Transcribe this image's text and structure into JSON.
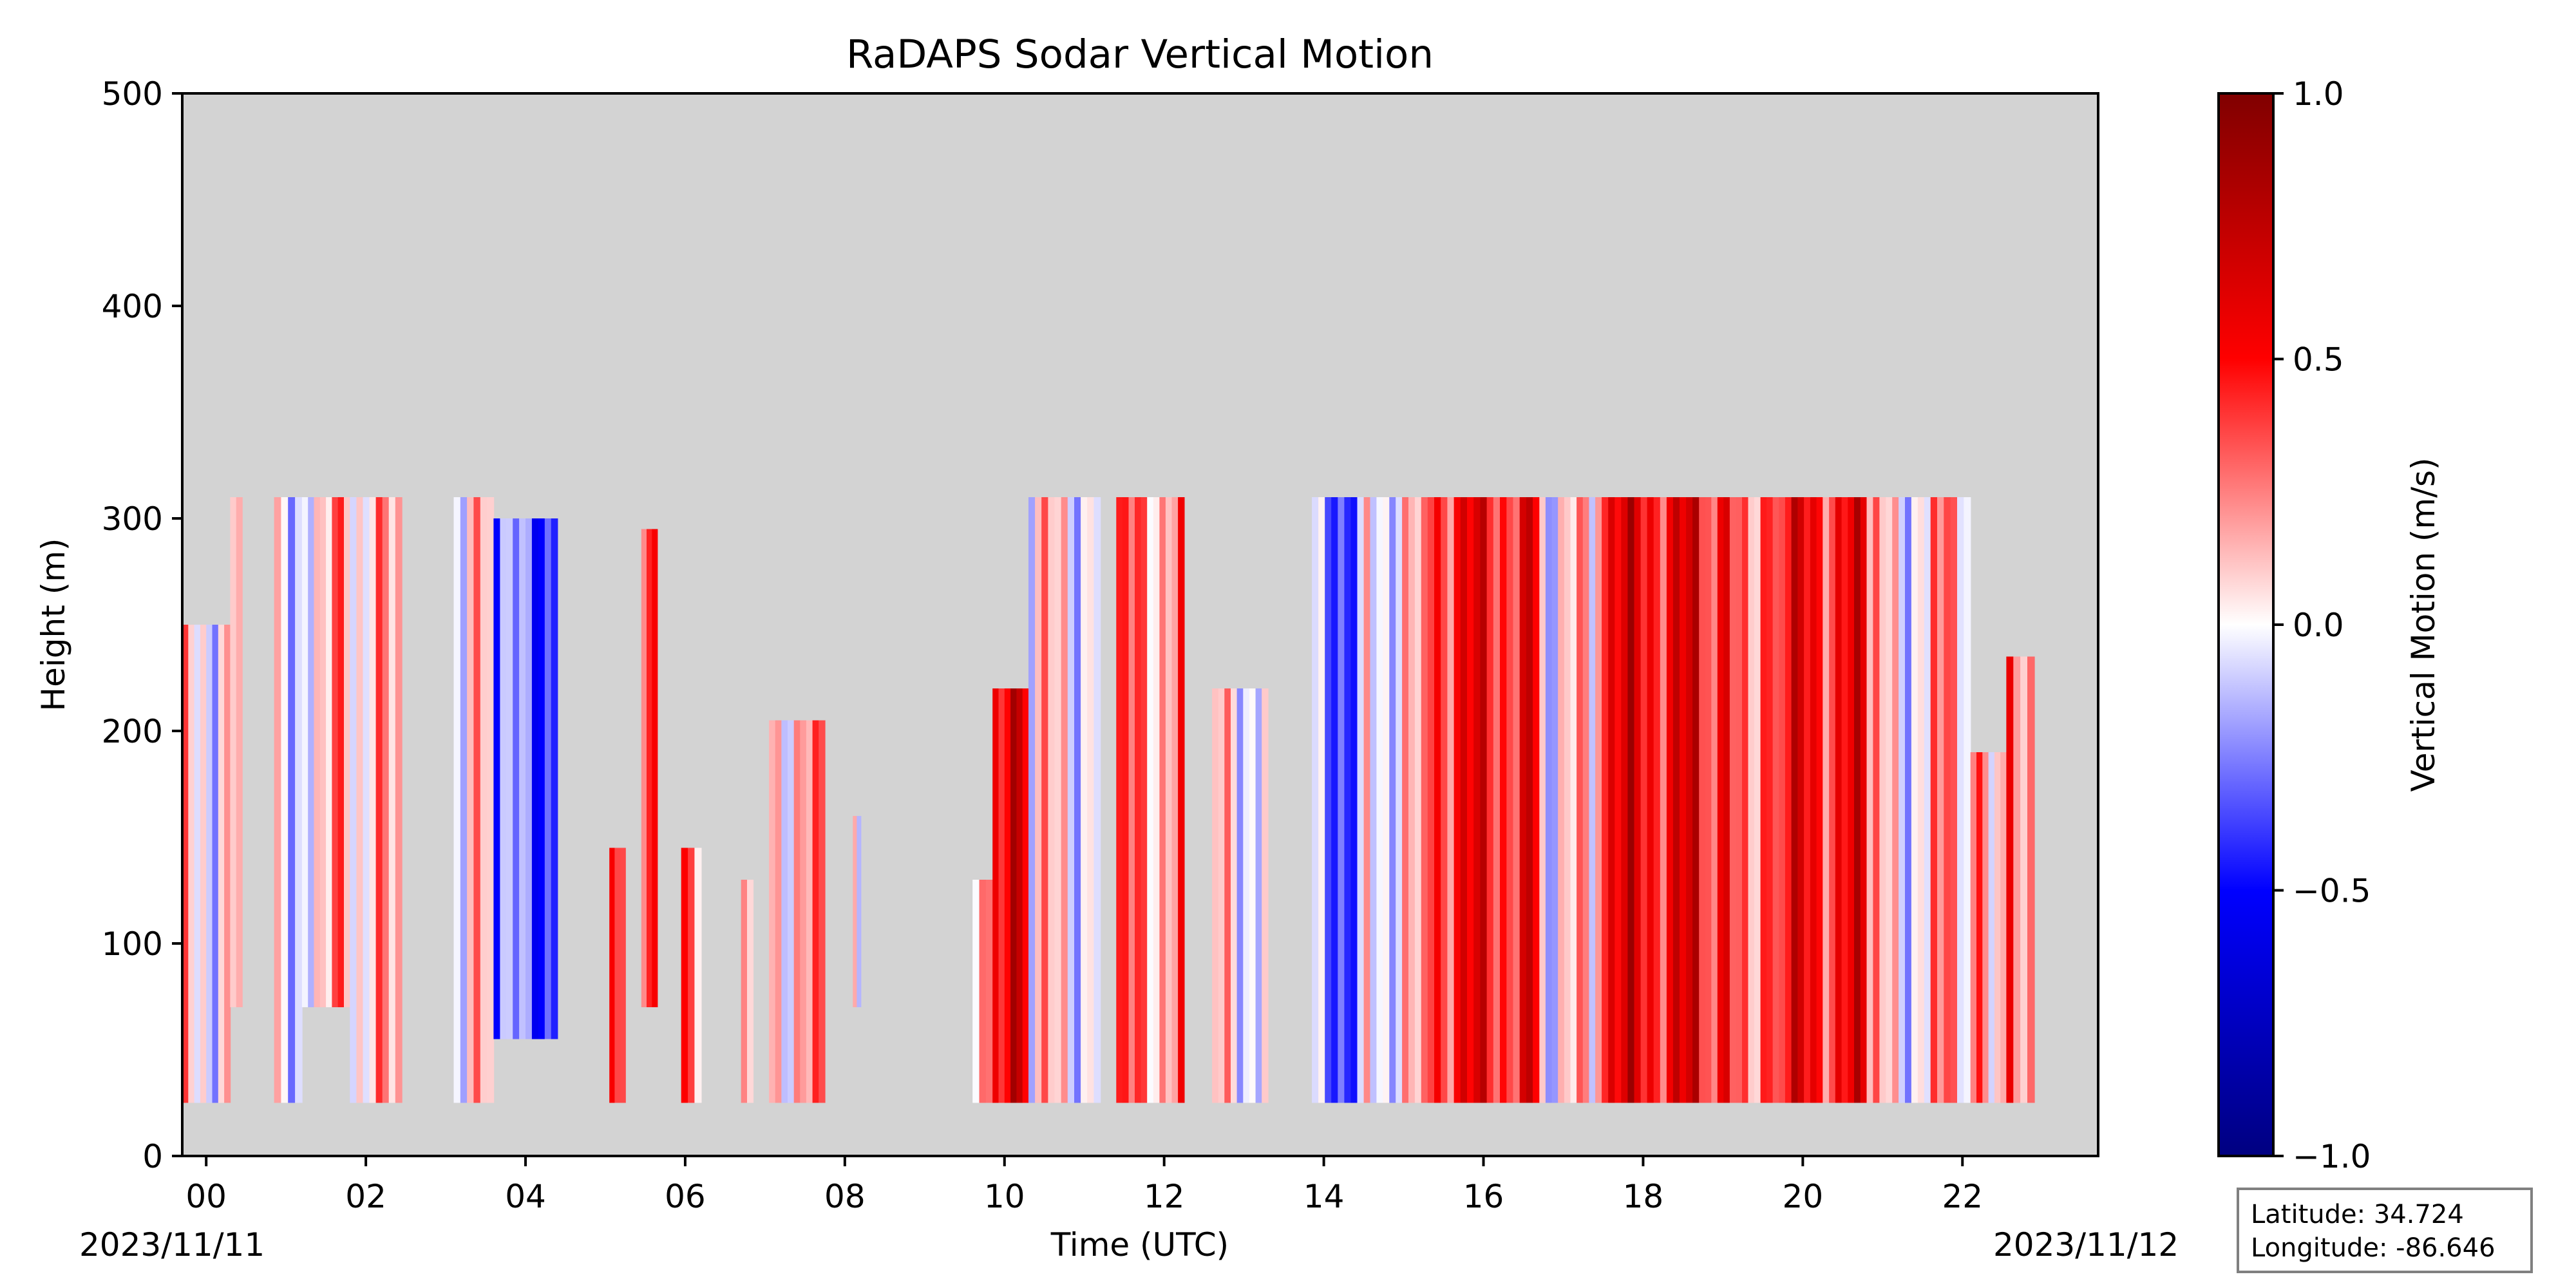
{
  "chart_data": {
    "type": "heatmap",
    "title": "RaDAPS Sodar Vertical Motion",
    "xlabel": "Time (UTC)",
    "ylabel": "Height (m)",
    "colorbar_label": "Vertical Motion (m/s)",
    "colormap": "seismic",
    "missing_color": "#d3d3d3",
    "xlim_hours": [
      -0.3,
      23.7
    ],
    "ylim": [
      0,
      500
    ],
    "x_ticks": [
      0,
      2,
      4,
      6,
      8,
      10,
      12,
      14,
      16,
      18,
      20,
      22
    ],
    "x_tick_labels": [
      "00",
      "02",
      "04",
      "06",
      "08",
      "10",
      "12",
      "14",
      "16",
      "18",
      "20",
      "22"
    ],
    "y_ticks": [
      0,
      100,
      200,
      300,
      400,
      500
    ],
    "y_tick_labels": [
      "0",
      "100",
      "200",
      "300",
      "400",
      "500"
    ],
    "colorbar_range": [
      -1.0,
      1.0
    ],
    "colorbar_ticks": [
      1.0,
      0.5,
      0.0,
      -0.5,
      -1.0
    ],
    "colorbar_tick_labels": [
      "1.0",
      "0.5",
      "0.0",
      "−0.5",
      "−1.0"
    ],
    "date_left": "2023/11/11",
    "date_right": "2023/11/12",
    "segments": [
      {
        "start": -0.3,
        "end": 0.3,
        "bottom": 25,
        "top": 250,
        "mean": 0.05
      },
      {
        "start": 0.3,
        "end": 0.45,
        "bottom": 70,
        "top": 310,
        "mean": 0.15
      },
      {
        "start": 0.85,
        "end": 1.2,
        "bottom": 25,
        "top": 310,
        "mean": 0.05
      },
      {
        "start": 1.2,
        "end": 1.8,
        "bottom": 70,
        "top": 310,
        "mean": 0.15
      },
      {
        "start": 1.8,
        "end": 2.45,
        "bottom": 25,
        "top": 310,
        "mean": 0.1
      },
      {
        "start": 3.1,
        "end": 3.6,
        "bottom": 25,
        "top": 310,
        "mean": 0.05
      },
      {
        "start": 3.6,
        "end": 4.4,
        "bottom": 55,
        "top": 300,
        "mean": -0.3
      },
      {
        "start": 5.05,
        "end": 5.25,
        "bottom": 25,
        "top": 145,
        "mean": 0.3
      },
      {
        "start": 5.45,
        "end": 5.65,
        "bottom": 70,
        "top": 295,
        "mean": 0.25
      },
      {
        "start": 5.95,
        "end": 6.2,
        "bottom": 25,
        "top": 145,
        "mean": 0.2
      },
      {
        "start": 6.7,
        "end": 6.85,
        "bottom": 25,
        "top": 130,
        "mean": 0.2
      },
      {
        "start": 7.05,
        "end": 7.75,
        "bottom": 25,
        "top": 205,
        "mean": 0.15
      },
      {
        "start": 8.1,
        "end": 8.2,
        "bottom": 70,
        "top": 160,
        "mean": 0.2
      },
      {
        "start": 9.6,
        "end": 9.85,
        "bottom": 25,
        "top": 130,
        "mean": 0.3
      },
      {
        "start": 9.85,
        "end": 10.3,
        "bottom": 25,
        "top": 220,
        "mean": 0.55
      },
      {
        "start": 10.3,
        "end": 11.2,
        "bottom": 25,
        "top": 310,
        "mean": 0.05
      },
      {
        "start": 11.4,
        "end": 12.25,
        "bottom": 25,
        "top": 310,
        "mean": 0.25
      },
      {
        "start": 12.6,
        "end": 13.3,
        "bottom": 25,
        "top": 220,
        "mean": 0.05
      },
      {
        "start": 13.85,
        "end": 14.5,
        "bottom": 25,
        "top": 310,
        "mean": -0.25
      },
      {
        "start": 14.5,
        "end": 15.3,
        "bottom": 25,
        "top": 310,
        "mean": 0.05
      },
      {
        "start": 15.3,
        "end": 16.7,
        "bottom": 25,
        "top": 310,
        "mean": 0.5
      },
      {
        "start": 16.7,
        "end": 17.4,
        "bottom": 25,
        "top": 310,
        "mean": 0.05
      },
      {
        "start": 17.4,
        "end": 18.7,
        "bottom": 25,
        "top": 310,
        "mean": 0.55
      },
      {
        "start": 18.7,
        "end": 19.7,
        "bottom": 25,
        "top": 310,
        "mean": 0.35
      },
      {
        "start": 19.7,
        "end": 20.8,
        "bottom": 25,
        "top": 310,
        "mean": 0.5
      },
      {
        "start": 20.8,
        "end": 21.6,
        "bottom": 25,
        "top": 310,
        "mean": 0.05
      },
      {
        "start": 21.6,
        "end": 22.1,
        "bottom": 25,
        "top": 310,
        "mean": 0.2
      },
      {
        "start": 22.1,
        "end": 22.55,
        "bottom": 25,
        "top": 190,
        "mean": 0.2
      },
      {
        "start": 22.55,
        "end": 22.9,
        "bottom": 25,
        "top": 235,
        "mean": 0.3
      }
    ]
  },
  "info_box": {
    "latitude": "Latitude: 34.724",
    "longitude": "Longitude: -86.646"
  }
}
